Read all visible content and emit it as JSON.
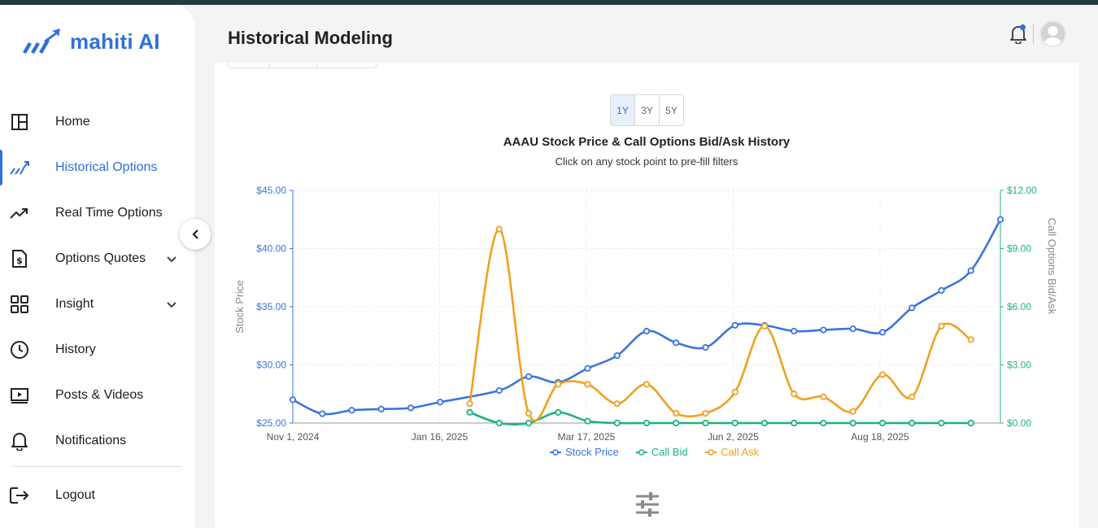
{
  "app": {
    "brand": "mahiti AI",
    "brand_color": "#2f6fde"
  },
  "header": {
    "title": "Historical Modeling"
  },
  "sidebar": {
    "items": [
      {
        "label": "Home",
        "icon": "layout-icon"
      },
      {
        "label": "Historical Options",
        "icon": "chart-up-icon",
        "active": true
      },
      {
        "label": "Real Time Options",
        "icon": "trending-up-icon"
      },
      {
        "label": "Options Quotes",
        "icon": "dollar-document-icon",
        "expandable": true
      },
      {
        "label": "Insight",
        "icon": "grid-icon",
        "expandable": true
      },
      {
        "label": "History",
        "icon": "clock-icon"
      },
      {
        "label": "Posts & Videos",
        "icon": "play-screen-icon"
      },
      {
        "label": "Notifications",
        "icon": "bell-icon"
      },
      {
        "label": "Logout",
        "icon": "logout-icon"
      }
    ]
  },
  "range": {
    "options": [
      "1Y",
      "3Y",
      "5Y"
    ],
    "selected": "1Y"
  },
  "chart_data": {
    "type": "line",
    "title": "AAAU Stock Price & Call Options Bid/Ask History",
    "subtitle": "Click on any stock point to pre-fill filters",
    "ylabel": "Stock Price",
    "y2label": "Call Options Bid/Ask",
    "ylim": [
      25,
      45
    ],
    "y2lim": [
      0,
      12
    ],
    "yticks": [
      "$45.00",
      "$40.00",
      "$35.00",
      "$30.00",
      "$25.00"
    ],
    "y2ticks": [
      "$12.00",
      "$9.00",
      "$6.00",
      "$3.00",
      "$0.00"
    ],
    "xticks": [
      "Nov 1, 2024",
      "Jan 16, 2025",
      "Mar 17, 2025",
      "Jun 2, 2025",
      "Aug 18, 2025"
    ],
    "legend": "bottom",
    "series": [
      {
        "name": "Stock Price",
        "axis": "left",
        "color": "#3b74e0",
        "values": [
          27.0,
          25.8,
          26.1,
          26.2,
          26.3,
          26.8,
          null,
          27.8,
          29.0,
          28.5,
          29.7,
          30.8,
          32.9,
          31.9,
          31.5,
          33.4,
          33.4,
          32.9,
          33.0,
          33.1,
          32.8,
          34.9,
          36.4,
          38.1,
          42.5
        ]
      },
      {
        "name": "Call Bid",
        "axis": "right",
        "color": "#1db37b",
        "values": [
          null,
          null,
          null,
          null,
          null,
          null,
          0.55,
          0.0,
          0.0,
          0.55,
          0.1,
          0.0,
          0.0,
          0.0,
          0.0,
          0.0,
          0.0,
          0.0,
          0.0,
          0.0,
          0.0,
          0.0,
          0.0,
          0.0,
          null
        ]
      },
      {
        "name": "Call Ask",
        "axis": "right",
        "color": "#f0a020",
        "values": [
          null,
          null,
          null,
          null,
          null,
          null,
          1.0,
          10.0,
          0.5,
          2.0,
          2.0,
          1.0,
          2.0,
          0.5,
          0.5,
          1.6,
          5.0,
          1.5,
          1.35,
          0.6,
          2.5,
          1.35,
          5.0,
          4.3,
          null
        ]
      }
    ]
  }
}
